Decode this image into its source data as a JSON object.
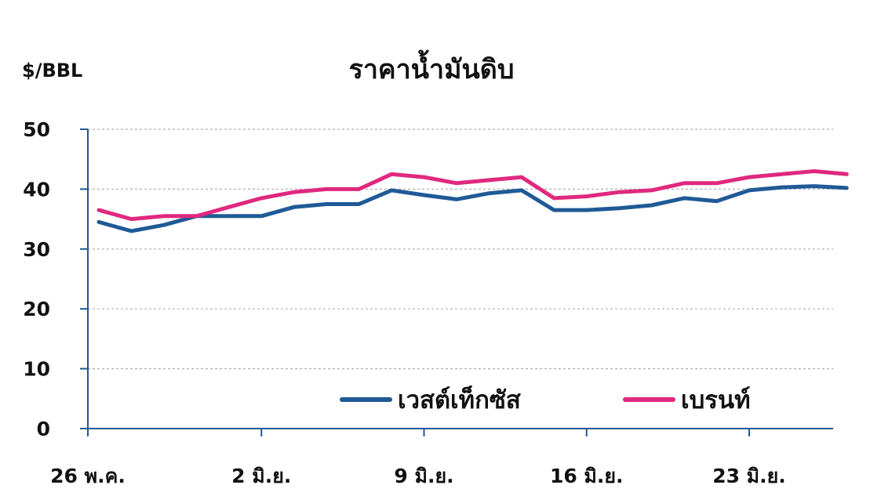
{
  "chart_data": {
    "type": "line",
    "title": "ราคาน้ำมันดิบ",
    "ylabel": "$/BBL",
    "xlabel": "",
    "ylim": [
      0,
      50
    ],
    "yticks": [
      0,
      10,
      20,
      30,
      40,
      50
    ],
    "grid": true,
    "legend_position": "bottom-right",
    "x_tick_labels": [
      {
        "label": "26 พ.ค.",
        "index": 0
      },
      {
        "label": "2 มิ.ย.",
        "index": 5
      },
      {
        "label": "9 มิ.ย.",
        "index": 10
      },
      {
        "label": "16 มิ.ย.",
        "index": 15
      },
      {
        "label": "23 มิ.ย.",
        "index": 20
      }
    ],
    "x_count": 26,
    "series": [
      {
        "name": "เวสต์เท็กซัส",
        "color": "#1f5a96",
        "x": [
          0,
          1,
          2,
          3,
          4,
          5,
          6,
          7,
          8,
          9,
          10,
          11,
          12,
          13,
          14,
          15,
          16,
          17,
          18,
          19,
          20,
          21,
          22,
          23
        ],
        "values": [
          34.5,
          33.0,
          34.0,
          35.5,
          35.5,
          35.5,
          37.0,
          37.5,
          37.5,
          39.8,
          39.0,
          38.3,
          39.3,
          39.8,
          36.5,
          36.5,
          36.8,
          37.3,
          38.5,
          38.0,
          39.8,
          40.3,
          40.5,
          40.2
        ]
      },
      {
        "name": "เบรนท์",
        "color": "#e0287f",
        "x": [
          0,
          1,
          2,
          3,
          4,
          5,
          6,
          7,
          8,
          9,
          10,
          11,
          12,
          13,
          14,
          15,
          16,
          17,
          18,
          19,
          20,
          21,
          22,
          23
        ],
        "values": [
          36.5,
          35.0,
          35.5,
          35.5,
          37.0,
          38.5,
          39.5,
          40.0,
          40.0,
          42.5,
          42.0,
          41.0,
          41.5,
          42.0,
          38.5,
          38.8,
          39.5,
          39.8,
          41.0,
          41.0,
          42.0,
          42.5,
          43.0,
          42.5
        ]
      }
    ]
  }
}
